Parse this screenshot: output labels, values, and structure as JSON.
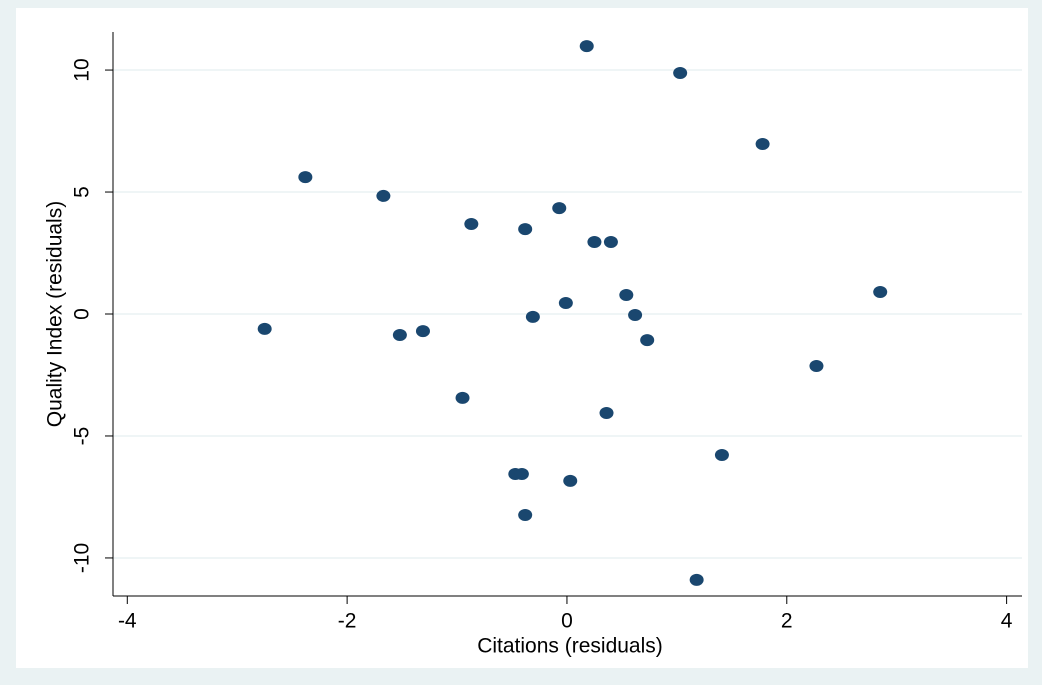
{
  "chart_data": {
    "type": "scatter",
    "x_label": "Citations (residuals)",
    "y_label": "Quality Index (residuals)",
    "xlim": [
      -4.13,
      4.14
    ],
    "ylim": [
      -11.56,
      11.56
    ],
    "xticks": [
      -4,
      -2,
      0,
      2,
      4
    ],
    "yticks": [
      -10,
      -5,
      0,
      5,
      10
    ],
    "grid": true,
    "color": "#1a476f",
    "x": [
      0.18,
      1.03,
      1.78,
      -2.38,
      -1.67,
      -0.07,
      -0.87,
      -0.38,
      0.25,
      0.4,
      2.85,
      0.54,
      -0.01,
      0.62,
      -0.31,
      -2.75,
      -1.31,
      -1.52,
      0.73,
      2.27,
      -0.95,
      0.36,
      1.41,
      -0.47,
      -0.41,
      0.03,
      -0.38,
      1.18
    ],
    "values": [
      10.98,
      9.88,
      6.97,
      5.61,
      4.84,
      4.34,
      3.69,
      3.48,
      2.95,
      2.95,
      0.9,
      0.78,
      0.45,
      -0.04,
      -0.12,
      -0.61,
      -0.7,
      -0.86,
      -1.07,
      -2.13,
      -3.44,
      -4.06,
      -5.78,
      -6.56,
      -6.56,
      -6.84,
      -8.24,
      -10.9
    ]
  }
}
